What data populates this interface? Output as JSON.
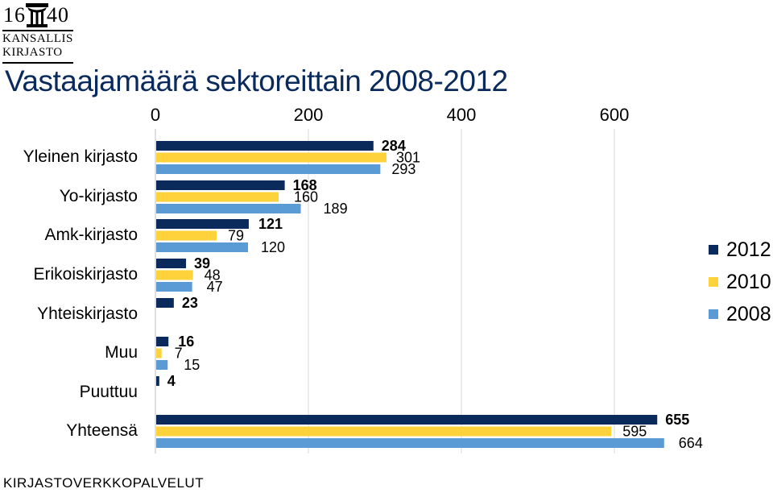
{
  "header": {
    "logo_year_left": "16",
    "logo_year_right": "40",
    "logo_line1": "KANSALLIS",
    "logo_line2": "KIRJASTO",
    "title": "Vastaajamäärä sektoreittain 2008-2012"
  },
  "footer": {
    "text": "KIRJASTOVERKKOPALVELUT"
  },
  "colors": {
    "s2012": "#0b2a5c",
    "s2010": "#fdd23a",
    "s2008": "#5b9bd5"
  },
  "chart_data": {
    "type": "bar",
    "orientation": "horizontal",
    "categories": [
      "Yleinen kirjasto",
      "Yo-kirjasto",
      "Amk-kirjasto",
      "Erikoiskirjasto",
      "Yhteiskirjasto",
      "Muu",
      "Puuttuu",
      "Yhteensä"
    ],
    "series": [
      {
        "name": "2012",
        "color": "#0b2a5c",
        "values": [
          284,
          168,
          121,
          39,
          23,
          16,
          4,
          655
        ]
      },
      {
        "name": "2010",
        "color": "#fdd23a",
        "values": [
          301,
          160,
          79,
          48,
          null,
          7,
          null,
          595
        ]
      },
      {
        "name": "2008",
        "color": "#5b9bd5",
        "values": [
          293,
          189,
          120,
          47,
          null,
          15,
          null,
          664
        ]
      }
    ],
    "xlim": [
      0,
      700
    ],
    "xticks": [
      0,
      200,
      400,
      600
    ],
    "xtick_labels": [
      "0",
      "200",
      "400",
      "600"
    ],
    "xaxis_position": "top",
    "grid": true,
    "legend_position": "right"
  }
}
